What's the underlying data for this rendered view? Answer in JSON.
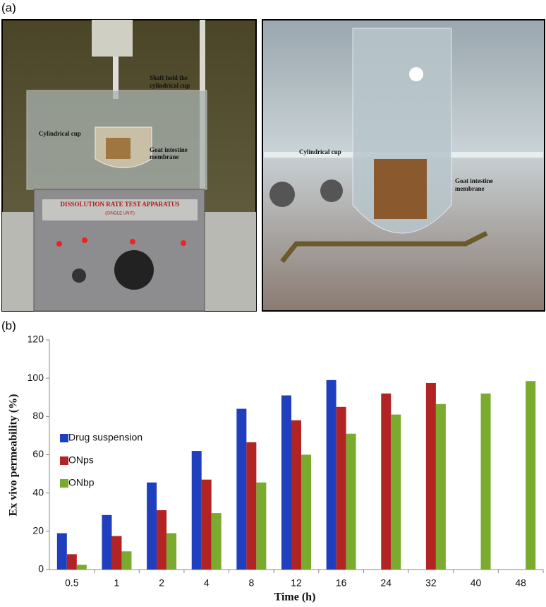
{
  "figure": {
    "panel_a": "(a)",
    "panel_b": "(b)",
    "left_photo": {
      "shaft_note": [
        "Shaft hold the",
        "cylindrical cup"
      ],
      "cup_note": "Cylindrical cup",
      "membrane_note": [
        "Goat intestine",
        "membrane"
      ],
      "apparatus_title": "DISSOLUTION RATE TEST APPARATUS",
      "apparatus_subtitle": "(SINGLE UNIT)"
    },
    "right_photo": {
      "cup_note": "Cylindrical cup",
      "membrane_note": [
        "Goat intestine",
        "membrane"
      ]
    }
  },
  "chart_data": {
    "type": "bar",
    "x_label": "Time (h)",
    "y_label": "Ex vivo permeability (%)",
    "categories": [
      "0.5",
      "1",
      "2",
      "4",
      "8",
      "12",
      "16",
      "24",
      "32",
      "40",
      "48"
    ],
    "series": [
      {
        "name": "Drug suspension",
        "color": "#1f3fbf",
        "values": [
          19,
          28.5,
          45.5,
          62,
          84,
          91,
          99,
          null,
          null,
          null,
          null
        ]
      },
      {
        "name": "ONps",
        "color": "#b22424",
        "values": [
          8,
          17.5,
          31,
          47,
          66.5,
          78,
          85,
          92,
          97.5,
          null,
          null
        ]
      },
      {
        "name": "ONbp",
        "color": "#7aab2e",
        "values": [
          2.5,
          9.5,
          19,
          29.5,
          45.5,
          60,
          71,
          81,
          86.5,
          92,
          98.5
        ]
      }
    ],
    "ylim": [
      0,
      120
    ],
    "yticks": [
      0,
      20,
      40,
      60,
      80,
      100,
      120
    ],
    "grid": false,
    "legend": "left"
  }
}
